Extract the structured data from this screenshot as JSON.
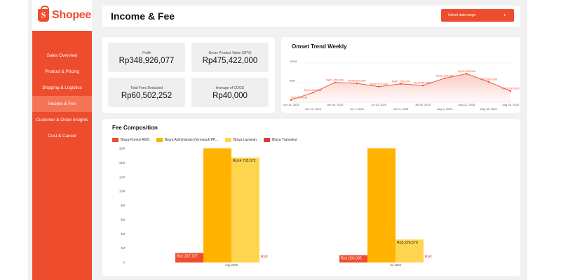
{
  "brand": {
    "name": "Shopee",
    "color": "#ee4d2d",
    "icon": "shopping-bag-icon"
  },
  "sidebar": {
    "items": [
      {
        "label": "Sales Overview",
        "active": false
      },
      {
        "label": "Product & Pricing",
        "active": false
      },
      {
        "label": "Shipping & Logistics",
        "active": false
      },
      {
        "label": "Income & Fee",
        "active": true
      },
      {
        "label": "Customer & Order Insights",
        "active": false
      },
      {
        "label": "Cost & Cancel",
        "active": false
      }
    ]
  },
  "header": {
    "title": "Income & Fee",
    "date_range_label": "Select date range",
    "date_range_icon": "chevron-down-icon"
  },
  "kpis": [
    {
      "label": "Profit",
      "value": "Rp348,926,077"
    },
    {
      "label": "Gross Product Value (GPV)",
      "value": "Rp475,422,000"
    },
    {
      "label": "Total Fees Deducted",
      "value": "Rp60,502,252"
    },
    {
      "label": "Average of COGS",
      "value": "Rp40,000"
    }
  ],
  "omset_section": {
    "title": "Omset Trend Weekly"
  },
  "fee_section": {
    "title": "Fee Composition"
  },
  "chart_data": [
    {
      "type": "area",
      "title": "Omset Trend Weekly",
      "y_ticks": [
        "100M",
        "50M"
      ],
      "ylim": [
        0,
        100000000
      ],
      "x": [
        "Jun 16, 2025",
        "Jun 23, 2025",
        "Jun 30, 2025",
        "Jul 7, 2025",
        "Jul 14, 2025",
        "Jul 21, 2025",
        "Jul 28, 2025",
        "Aug 4, 2025",
        "Aug 11, 2025",
        "Aug 18, 2025",
        "Aug 25, 2025"
      ],
      "x_tick_rows": {
        "top": [
          "Jun 16, 2025",
          "Jun 30, 2025",
          "Jul 14, 2025",
          "Jul 28, 2025",
          "Aug 11, 2025",
          "Aug 25, 2025"
        ],
        "bottom": [
          "Jun 23, 2025",
          "Jul 7, 2025",
          "Jul 21, 2025",
          "Aug 4, 2025",
          "Aug 18, 2025"
        ]
      },
      "series": [
        {
          "values": [
            5764000,
            24949000,
            51152000,
            48963000,
            40273000,
            47706000,
            43467000,
            62196000,
            73876000,
            53039000,
            29045000
          ],
          "labels": [
            "Rp5,764,000",
            "Rp24,949,000",
            "Rp51,152,000",
            "Rp48,963,000",
            "Rp40,273,000",
            "Rp47,706,000",
            "Rp43,467,000",
            "Rp62,196,000",
            "Rp73,876,000",
            "Rp53,039,000",
            "Rp29,045,000"
          ]
        }
      ],
      "color": "#ee4d2d",
      "grid": true
    },
    {
      "type": "bar",
      "title": "Fee Composition",
      "categories": [
        "Aug 2025",
        "Jul 2025"
      ],
      "y_ticks": [
        "16M",
        "14M",
        "12M",
        "10M",
        "8M",
        "6M",
        "4M",
        "2M",
        "0"
      ],
      "ylim": [
        0,
        16000000
      ],
      "legend_position": "top",
      "series": [
        {
          "name": "Biaya Komisi AMS",
          "color": "#ee4d2d",
          "values": [
            1337727,
            1035095
          ],
          "labels": [
            "Rp1,337,727",
            "Rp1,035,095"
          ]
        },
        {
          "name": "Biaya Administrasi (termasuk PP...",
          "color": "#ffb300",
          "values": [
            16000000,
            16000000
          ],
          "labels": [
            "",
            ""
          ]
        },
        {
          "name": "Biaya Layanan",
          "color": "#ffd54f",
          "values": [
            14705572,
            3226570
          ],
          "labels": [
            "Rp14,705,572",
            "Rp3,226,570"
          ]
        },
        {
          "name": "Biaya Transaksi",
          "color": "#e53935",
          "values": [
            0,
            0
          ],
          "labels": [
            "Rp0",
            "Rp0"
          ]
        }
      ]
    }
  ]
}
